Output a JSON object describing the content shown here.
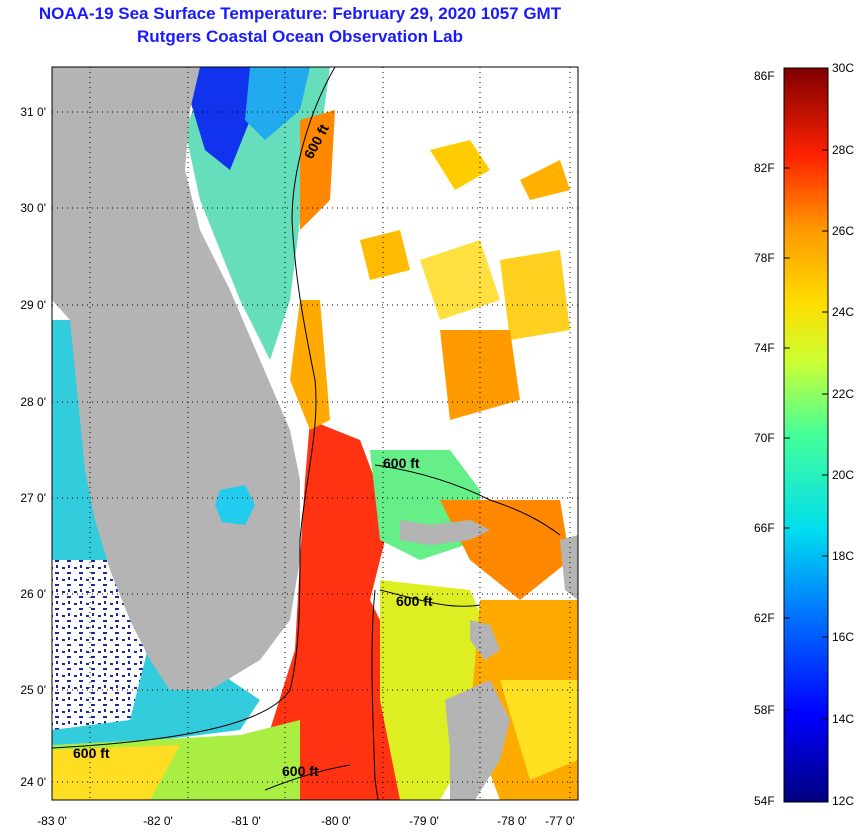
{
  "title": "NOAA-19 Sea Surface Temperature:  February 29, 2020 1057 GMT",
  "subtitle": "Rutgers Coastal Ocean Observation Lab",
  "map": {
    "lon_ticks": [
      "-83 0'",
      "-82 0'",
      "-81 0'",
      "-80 0'",
      "-79 0'",
      "-78 0'",
      "-77 0'"
    ],
    "lat_ticks": [
      "31 0'",
      "30 0'",
      "29 0'",
      "28 0'",
      "27 0'",
      "26 0'",
      "25 0'",
      "24 0'"
    ],
    "contour_label": "600 ft",
    "land_color": "#b4b4b4",
    "cloud_color": "#ffffff"
  },
  "colorbar": {
    "fahrenheit": [
      "86F",
      "82F",
      "78F",
      "74F",
      "70F",
      "66F",
      "62F",
      "58F",
      "54F"
    ],
    "celsius": [
      "30C",
      "28C",
      "26C",
      "24C",
      "22C",
      "20C",
      "18C",
      "16C",
      "14C",
      "12C"
    ]
  }
}
